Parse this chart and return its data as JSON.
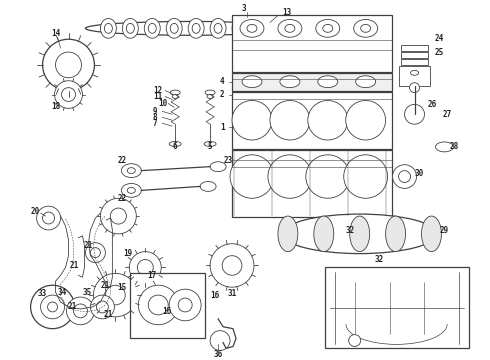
{
  "bg_color": "#ffffff",
  "line_color": "#404040",
  "label_color": "#222222",
  "fig_width": 4.9,
  "fig_height": 3.6,
  "dpi": 100
}
